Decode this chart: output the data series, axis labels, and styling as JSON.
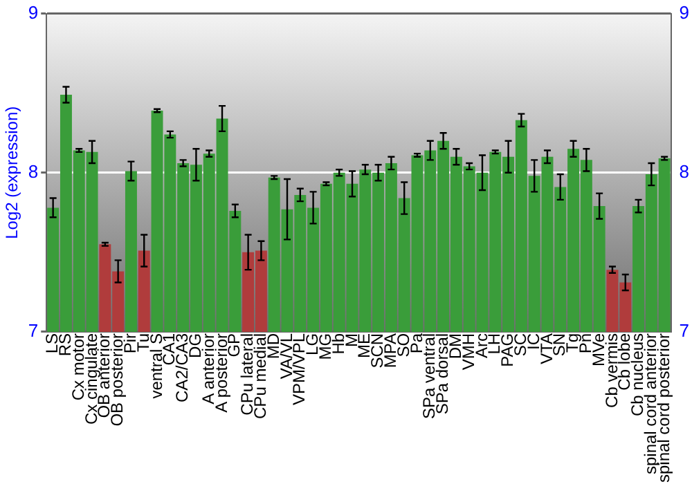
{
  "chart_data": {
    "type": "bar",
    "ylabel": "Log2 (expression)",
    "categories": [
      "LS",
      "RS",
      "Cx motor",
      "Cx cingulate",
      "OB anterior",
      "OB posterior",
      "Pir",
      "Tu",
      "ventral S",
      "CA1",
      "CA2/CA3",
      "DG",
      "A anterior",
      "A posterior",
      "GP",
      "CPu lateral",
      "CPu medial",
      "MD",
      "VA/VL",
      "VPM/VPL",
      "LG",
      "MG",
      "Hb",
      "M",
      "ME",
      "SCN",
      "MPA",
      "SO",
      "Pa",
      "SPa ventral",
      "SPa dorsal",
      "DM",
      "VMH",
      "Arc",
      "LH",
      "PAG",
      "SC",
      "IC",
      "VTA",
      "SN",
      "Tg",
      "Pn",
      "MVe",
      "Cb vermis",
      "Cb lobe",
      "Cb nucleus",
      "spinal cord anterior",
      "spinal cord posterior"
    ],
    "values": [
      7.78,
      8.49,
      8.14,
      8.13,
      7.55,
      7.38,
      8.01,
      7.51,
      8.39,
      8.24,
      8.06,
      8.05,
      8.12,
      8.34,
      7.76,
      7.5,
      7.51,
      7.97,
      7.77,
      7.86,
      7.78,
      7.93,
      8.0,
      7.93,
      8.02,
      8.0,
      8.06,
      7.84,
      8.11,
      8.14,
      8.2,
      8.1,
      8.04,
      8.0,
      8.13,
      8.1,
      8.33,
      7.98,
      8.1,
      7.91,
      8.15,
      8.08,
      7.79,
      7.39,
      7.31,
      7.79,
      7.99,
      8.09
    ],
    "errors": [
      0.06,
      0.05,
      0.01,
      0.07,
      0.01,
      0.07,
      0.06,
      0.1,
      0.01,
      0.02,
      0.02,
      0.1,
      0.02,
      0.08,
      0.04,
      0.11,
      0.06,
      0.01,
      0.19,
      0.04,
      0.1,
      0.01,
      0.02,
      0.08,
      0.03,
      0.05,
      0.04,
      0.1,
      0.01,
      0.06,
      0.05,
      0.05,
      0.02,
      0.11,
      0.01,
      0.1,
      0.04,
      0.1,
      0.04,
      0.08,
      0.05,
      0.07,
      0.08,
      0.02,
      0.05,
      0.04,
      0.07,
      0.01
    ],
    "colors": [
      "#3a9d3a",
      "#3a9d3a",
      "#3a9d3a",
      "#3a9d3a",
      "#b03c3c",
      "#b03c3c",
      "#3a9d3a",
      "#b03c3c",
      "#3a9d3a",
      "#3a9d3a",
      "#3a9d3a",
      "#3a9d3a",
      "#3a9d3a",
      "#3a9d3a",
      "#3a9d3a",
      "#b03c3c",
      "#b03c3c",
      "#3a9d3a",
      "#3a9d3a",
      "#3a9d3a",
      "#3a9d3a",
      "#3a9d3a",
      "#3a9d3a",
      "#3a9d3a",
      "#3a9d3a",
      "#3a9d3a",
      "#3a9d3a",
      "#3a9d3a",
      "#3a9d3a",
      "#3a9d3a",
      "#3a9d3a",
      "#3a9d3a",
      "#3a9d3a",
      "#3a9d3a",
      "#3a9d3a",
      "#3a9d3a",
      "#3a9d3a",
      "#3a9d3a",
      "#3a9d3a",
      "#3a9d3a",
      "#3a9d3a",
      "#3a9d3a",
      "#3a9d3a",
      "#b03c3c",
      "#b03c3c",
      "#3a9d3a",
      "#3a9d3a",
      "#3a9d3a"
    ],
    "ylim": [
      7,
      9
    ],
    "yticks": [
      7,
      8,
      9
    ],
    "y2lim": [
      7,
      9
    ],
    "y2ticks": [
      7,
      8,
      9
    ],
    "grid": "y",
    "legend": false
  }
}
